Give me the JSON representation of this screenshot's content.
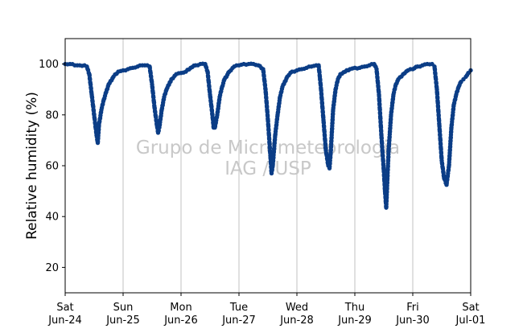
{
  "chart_data": {
    "type": "scatter",
    "title": "",
    "xlabel": "",
    "ylabel": "Relative humidity (%)",
    "xlim": [
      "2024-06-24T00:00",
      "2024-07-01T00:00"
    ],
    "ylim": [
      10,
      110
    ],
    "yticks": [
      20,
      40,
      60,
      80,
      100
    ],
    "xticks": [
      {
        "day": "Sat",
        "date": "Jun-24"
      },
      {
        "day": "Sun",
        "date": "Jun-25"
      },
      {
        "day": "Mon",
        "date": "Jun-26"
      },
      {
        "day": "Tue",
        "date": "Jun-27"
      },
      {
        "day": "Wed",
        "date": "Jun-28"
      },
      {
        "day": "Thu",
        "date": "Jun-29"
      },
      {
        "day": "Fri",
        "date": "Jun-30"
      },
      {
        "day": "Sat",
        "date": "Jul-01"
      }
    ],
    "grid": "vertical",
    "watermark": [
      "Grupo de Micrometeorologia",
      "IAG / USP"
    ],
    "marker_color": "#0b3d86",
    "grid_color": "#c0c0c0",
    "series": [
      {
        "name": "",
        "points": [
          [
            "2024-06-24T00:00",
            100
          ],
          [
            "2024-06-24T02:00",
            100
          ],
          [
            "2024-06-24T04:00",
            99.5
          ],
          [
            "2024-06-24T06:00",
            99.5
          ],
          [
            "2024-06-24T08:00",
            99.5
          ],
          [
            "2024-06-24T09:00",
            99
          ],
          [
            "2024-06-24T10:00",
            96
          ],
          [
            "2024-06-24T11:00",
            88
          ],
          [
            "2024-06-24T12:00",
            80
          ],
          [
            "2024-06-24T13:00",
            72
          ],
          [
            "2024-06-24T13:30",
            69
          ],
          [
            "2024-06-24T14:00",
            76
          ],
          [
            "2024-06-24T15:00",
            82
          ],
          [
            "2024-06-24T16:00",
            86
          ],
          [
            "2024-06-24T17:00",
            89
          ],
          [
            "2024-06-24T18:00",
            92
          ],
          [
            "2024-06-24T20:00",
            95
          ],
          [
            "2024-06-24T22:00",
            97
          ],
          [
            "2024-06-25T00:00",
            97.5
          ],
          [
            "2024-06-25T02:00",
            98
          ],
          [
            "2024-06-25T04:00",
            98.5
          ],
          [
            "2024-06-25T06:00",
            99
          ],
          [
            "2024-06-25T08:00",
            99.5
          ],
          [
            "2024-06-25T10:00",
            99.5
          ],
          [
            "2024-06-25T11:00",
            99
          ],
          [
            "2024-06-25T12:00",
            92
          ],
          [
            "2024-06-25T13:00",
            83
          ],
          [
            "2024-06-25T14:00",
            76
          ],
          [
            "2024-06-25T14:30",
            73
          ],
          [
            "2024-06-25T15:00",
            75
          ],
          [
            "2024-06-25T16:00",
            82
          ],
          [
            "2024-06-25T17:00",
            87
          ],
          [
            "2024-06-25T18:00",
            90
          ],
          [
            "2024-06-25T20:00",
            94
          ],
          [
            "2024-06-25T22:00",
            96
          ],
          [
            "2024-06-26T00:00",
            96.5
          ],
          [
            "2024-06-26T02:00",
            97
          ],
          [
            "2024-06-26T04:00",
            98.5
          ],
          [
            "2024-06-26T06:00",
            99.5
          ],
          [
            "2024-06-26T08:00",
            100
          ],
          [
            "2024-06-26T10:00",
            100
          ],
          [
            "2024-06-26T11:00",
            97
          ],
          [
            "2024-06-26T12:00",
            88
          ],
          [
            "2024-06-26T13:00",
            80
          ],
          [
            "2024-06-26T13:30",
            75
          ],
          [
            "2024-06-26T14:00",
            75
          ],
          [
            "2024-06-26T15:00",
            80
          ],
          [
            "2024-06-26T16:00",
            87
          ],
          [
            "2024-06-26T17:00",
            91
          ],
          [
            "2024-06-26T18:00",
            94
          ],
          [
            "2024-06-26T20:00",
            97
          ],
          [
            "2024-06-26T22:00",
            99
          ],
          [
            "2024-06-27T00:00",
            99.5
          ],
          [
            "2024-06-27T02:00",
            100
          ],
          [
            "2024-06-27T04:00",
            100
          ],
          [
            "2024-06-27T06:00",
            100
          ],
          [
            "2024-06-27T08:00",
            99.5
          ],
          [
            "2024-06-27T10:00",
            98
          ],
          [
            "2024-06-27T11:00",
            90
          ],
          [
            "2024-06-27T12:00",
            78
          ],
          [
            "2024-06-27T13:00",
            64
          ],
          [
            "2024-06-27T13:30",
            57
          ],
          [
            "2024-06-27T14:00",
            60
          ],
          [
            "2024-06-27T15:00",
            72
          ],
          [
            "2024-06-27T16:00",
            80
          ],
          [
            "2024-06-27T17:00",
            87
          ],
          [
            "2024-06-27T18:00",
            91
          ],
          [
            "2024-06-27T20:00",
            95
          ],
          [
            "2024-06-27T22:00",
            97
          ],
          [
            "2024-06-28T00:00",
            97.5
          ],
          [
            "2024-06-28T02:00",
            98
          ],
          [
            "2024-06-28T04:00",
            98.5
          ],
          [
            "2024-06-28T06:00",
            99
          ],
          [
            "2024-06-28T08:00",
            99.5
          ],
          [
            "2024-06-28T09:00",
            99.5
          ],
          [
            "2024-06-28T09:30",
            95
          ],
          [
            "2024-06-28T10:00",
            90
          ],
          [
            "2024-06-28T11:00",
            78
          ],
          [
            "2024-06-28T12:00",
            66
          ],
          [
            "2024-06-28T13:00",
            60
          ],
          [
            "2024-06-28T13:30",
            59
          ],
          [
            "2024-06-28T14:00",
            65
          ],
          [
            "2024-06-28T15:00",
            82
          ],
          [
            "2024-06-28T16:00",
            90
          ],
          [
            "2024-06-28T17:00",
            94
          ],
          [
            "2024-06-28T18:00",
            96
          ],
          [
            "2024-06-28T20:00",
            97
          ],
          [
            "2024-06-28T22:00",
            98
          ],
          [
            "2024-06-29T00:00",
            98.5
          ],
          [
            "2024-06-29T02:00",
            98.5
          ],
          [
            "2024-06-29T04:00",
            99
          ],
          [
            "2024-06-29T06:00",
            99.5
          ],
          [
            "2024-06-29T08:00",
            100
          ],
          [
            "2024-06-29T09:00",
            98
          ],
          [
            "2024-06-29T10:00",
            88
          ],
          [
            "2024-06-29T11:00",
            72
          ],
          [
            "2024-06-29T12:00",
            58
          ],
          [
            "2024-06-29T12:30",
            50
          ],
          [
            "2024-06-29T13:00",
            43.5
          ],
          [
            "2024-06-29T13:30",
            55
          ],
          [
            "2024-06-29T14:00",
            66
          ],
          [
            "2024-06-29T15:00",
            80
          ],
          [
            "2024-06-29T16:00",
            88
          ],
          [
            "2024-06-29T17:00",
            92
          ],
          [
            "2024-06-29T18:00",
            94
          ],
          [
            "2024-06-29T20:00",
            96
          ],
          [
            "2024-06-29T22:00",
            97.5
          ],
          [
            "2024-06-30T00:00",
            98
          ],
          [
            "2024-06-30T02:00",
            99
          ],
          [
            "2024-06-30T04:00",
            99.5
          ],
          [
            "2024-06-30T06:00",
            100
          ],
          [
            "2024-06-30T08:00",
            100
          ],
          [
            "2024-06-30T09:00",
            99
          ],
          [
            "2024-06-30T10:00",
            90
          ],
          [
            "2024-06-30T11:00",
            76
          ],
          [
            "2024-06-30T12:00",
            62
          ],
          [
            "2024-06-30T13:00",
            55
          ],
          [
            "2024-06-30T14:00",
            52.5
          ],
          [
            "2024-06-30T15:00",
            60
          ],
          [
            "2024-06-30T16:00",
            75
          ],
          [
            "2024-06-30T17:00",
            84
          ],
          [
            "2024-06-30T18:00",
            88
          ],
          [
            "2024-06-30T19:00",
            91
          ],
          [
            "2024-06-30T20:00",
            93
          ],
          [
            "2024-06-30T21:00",
            94
          ],
          [
            "2024-06-30T22:00",
            95
          ],
          [
            "2024-06-30T23:00",
            96.5
          ],
          [
            "2024-07-01T00:00",
            97.5
          ]
        ]
      }
    ]
  }
}
